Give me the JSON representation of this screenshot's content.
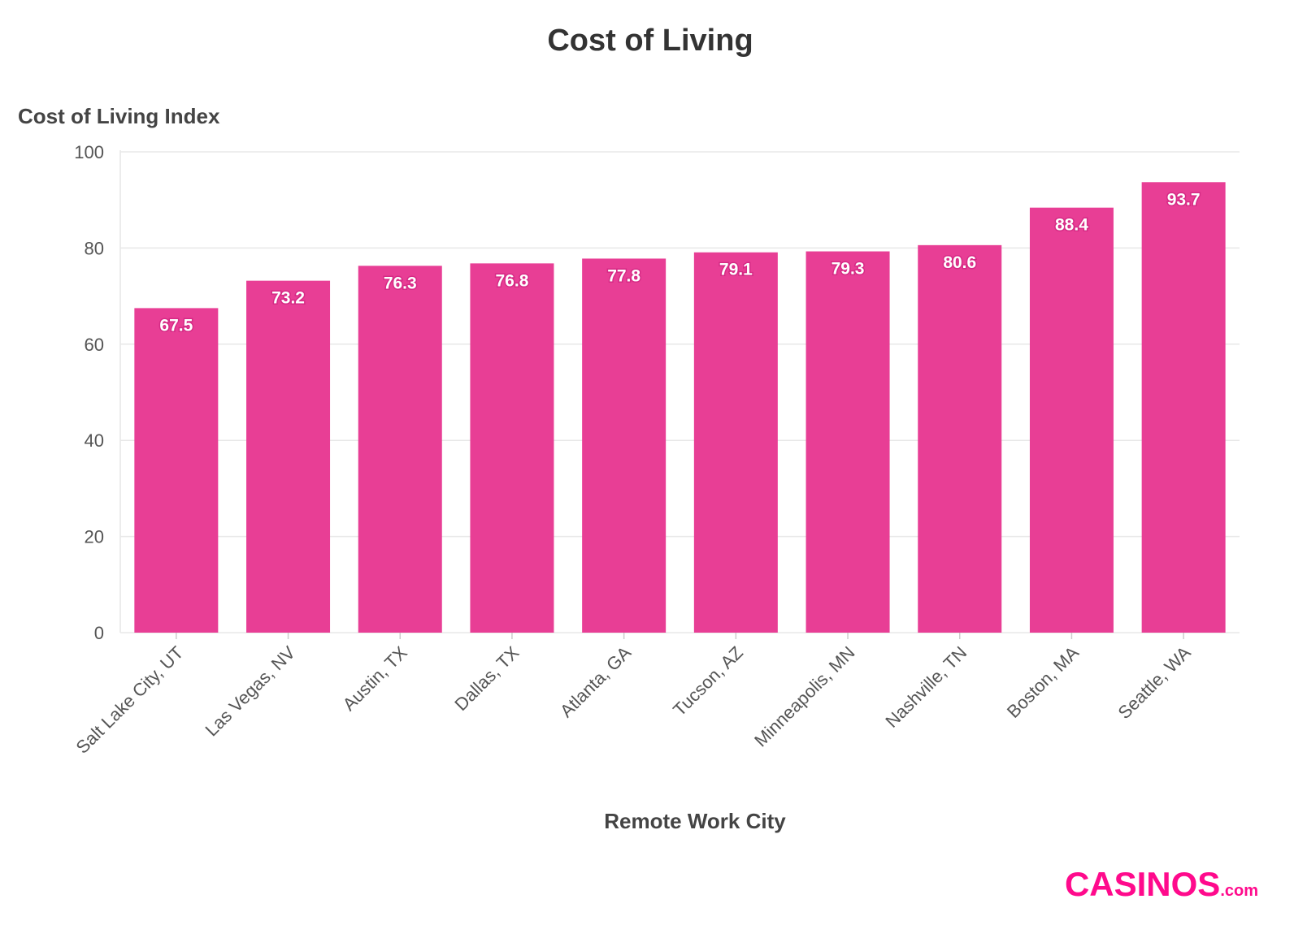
{
  "chart_data": {
    "type": "bar",
    "title": "Cost of Living",
    "ylabel": "Cost of Living Index",
    "xlabel": "Remote Work City",
    "categories": [
      "Salt Lake City, UT",
      "Las Vegas, NV",
      "Austin, TX",
      "Dallas, TX",
      "Atlanta, GA",
      "Tucson, AZ",
      "Minneapolis, MN",
      "Nashville, TN",
      "Boston, MA",
      "Seattle, WA"
    ],
    "values": [
      67.5,
      73.2,
      76.3,
      76.8,
      77.8,
      79.1,
      79.3,
      80.6,
      88.4,
      93.7
    ],
    "ylim": [
      0,
      100
    ],
    "yticks": [
      0,
      20,
      40,
      60,
      80,
      100
    ],
    "grid": true,
    "legend": "none",
    "bar_color": "#E83E95"
  },
  "logo": {
    "text": "CASINOS.com",
    "color": "#FF0A8C"
  }
}
